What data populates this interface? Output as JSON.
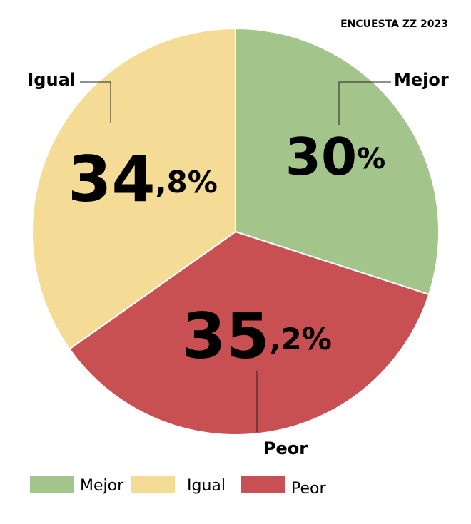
{
  "chart_data": {
    "type": "pie",
    "title": "ENCUESTA ZZ 2023",
    "categories": [
      "Mejor",
      "Peor",
      "Igual"
    ],
    "values": [
      30,
      35.2,
      34.8
    ],
    "value_labels": [
      "30%",
      "35,2%",
      "34,8%"
    ],
    "colors": [
      "#a3c48a",
      "#c85052",
      "#f5dc96"
    ],
    "legend": "bottom"
  }
}
